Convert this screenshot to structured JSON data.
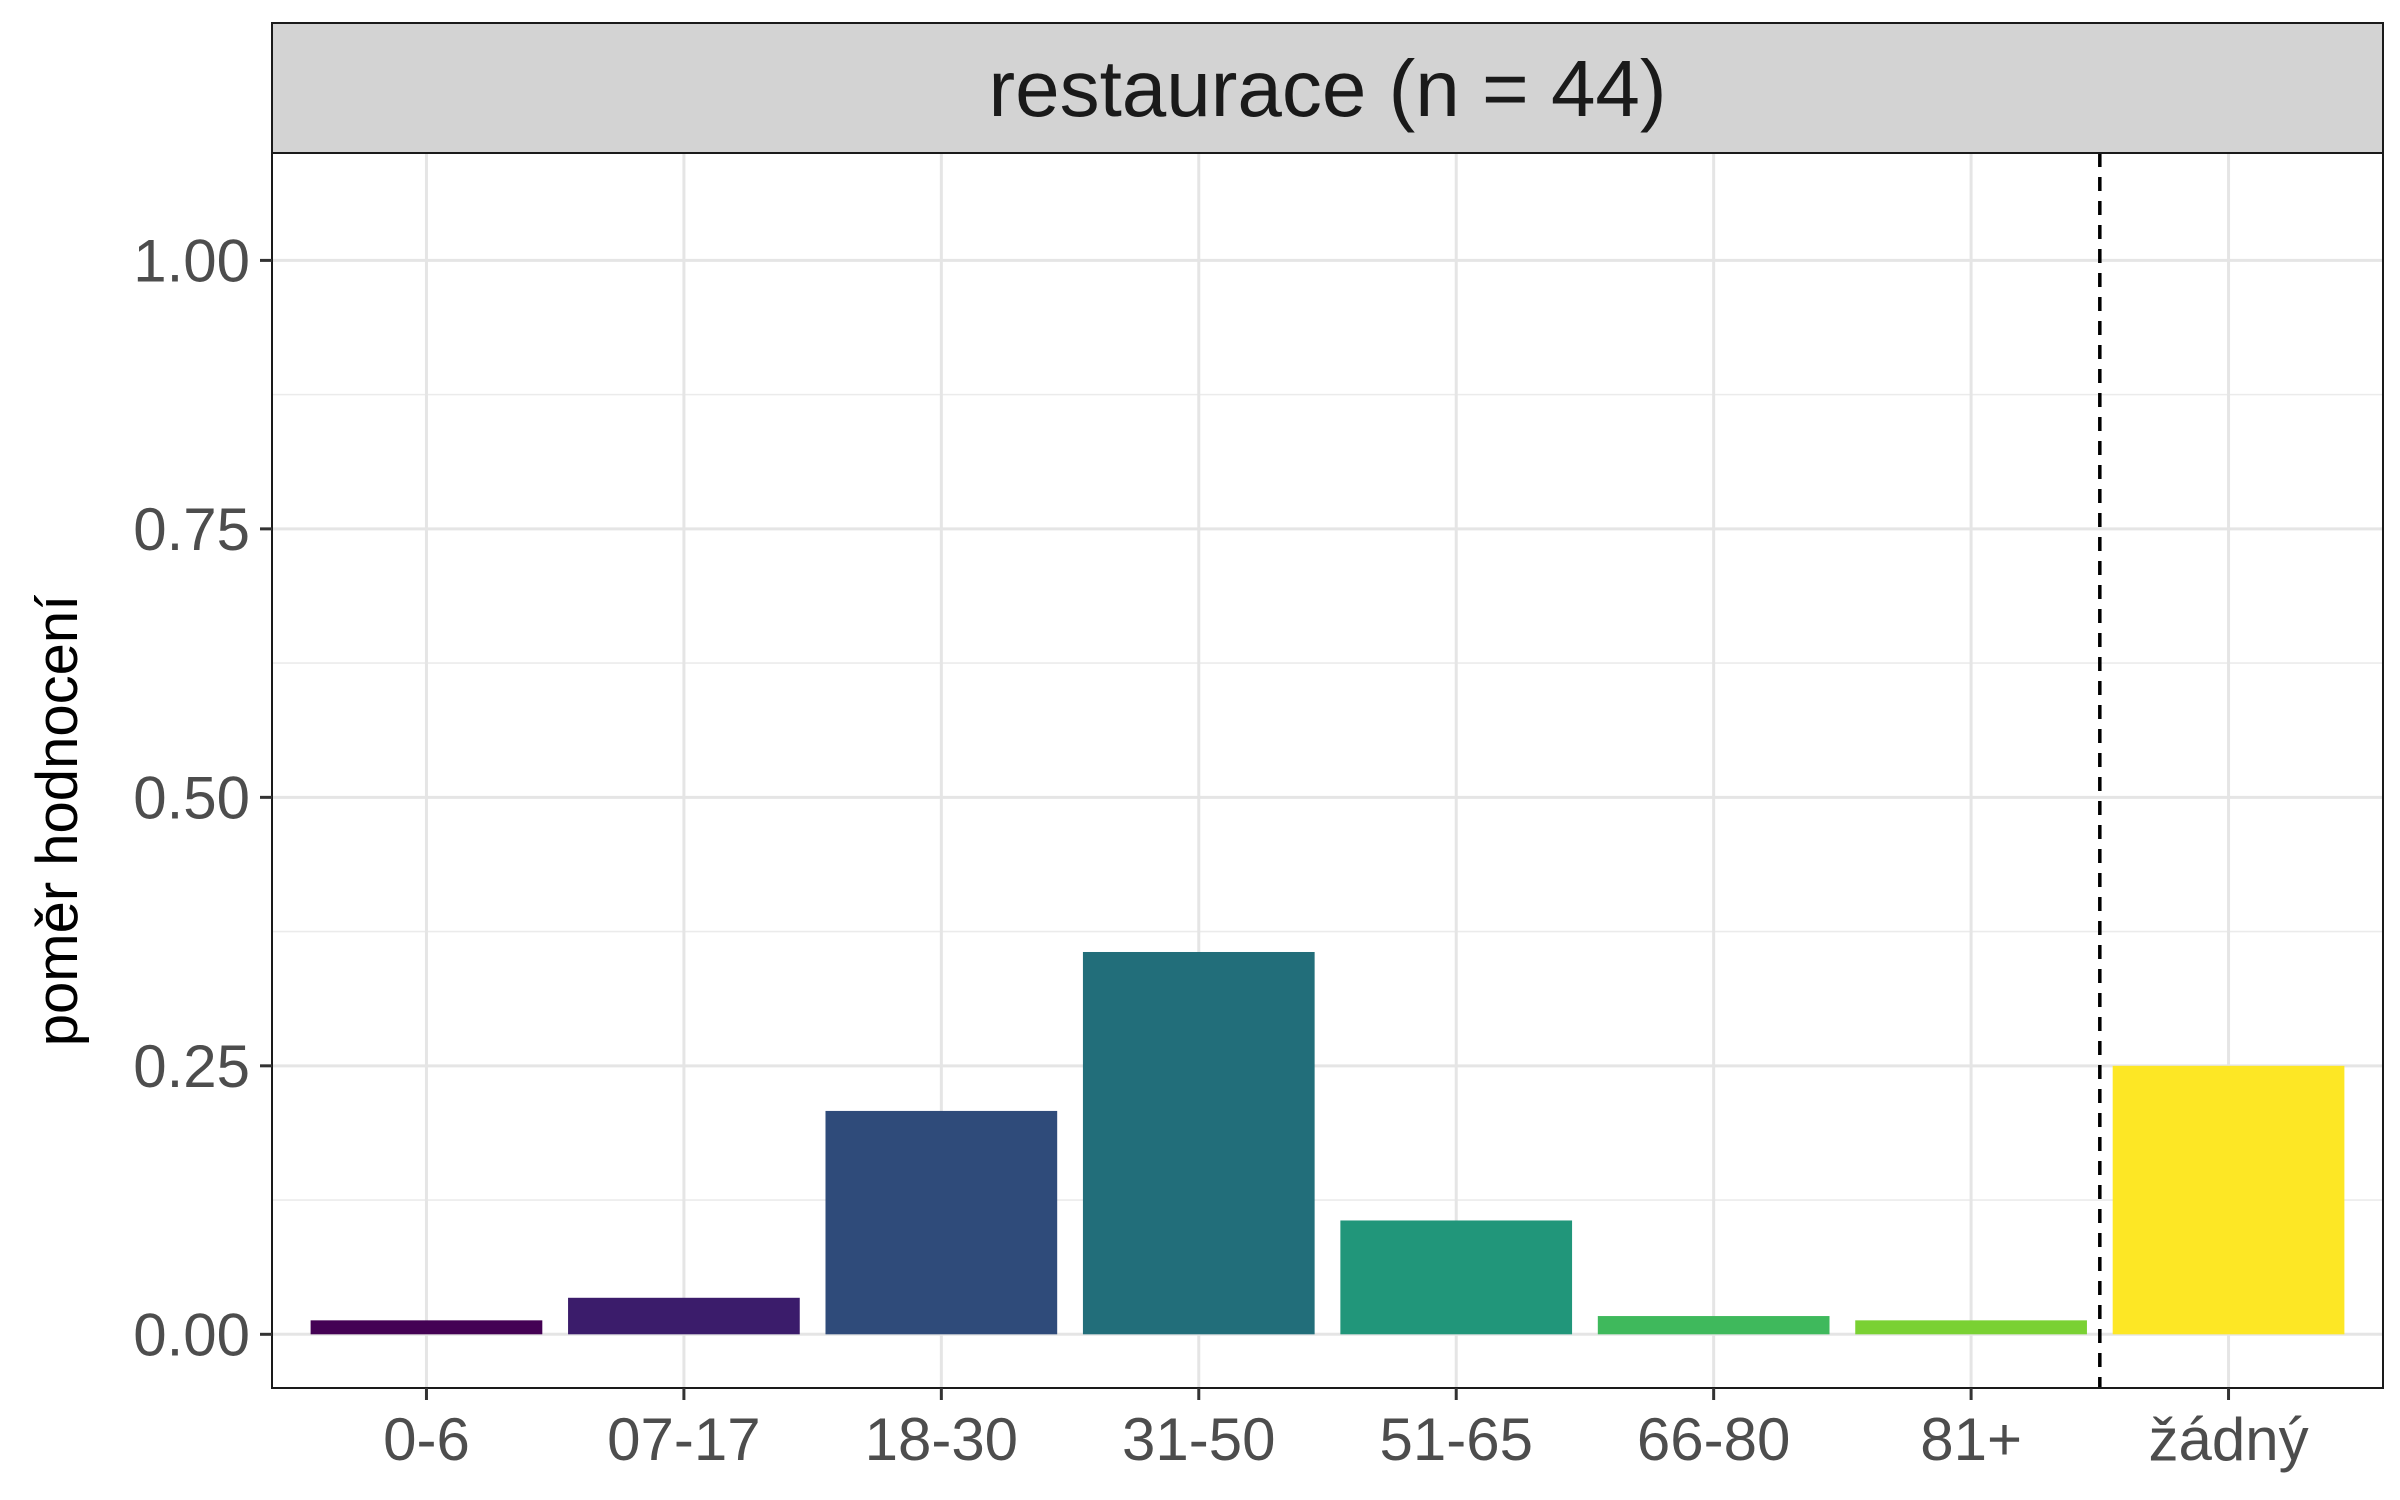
{
  "chart_data": {
    "type": "bar",
    "facet_title": "restaurace (n = 44)",
    "ylabel": "poměr hodnocení",
    "xlabel": "",
    "categories": [
      "0-6",
      "07-17",
      "18-30",
      "31-50",
      "51-65",
      "66-80",
      "81+",
      "žádný"
    ],
    "values": [
      0.013,
      0.034,
      0.208,
      0.356,
      0.106,
      0.017,
      0.013,
      0.25
    ],
    "colors": [
      "#440154",
      "#3B1C6B",
      "#2F4B7A",
      "#226E7A",
      "#21967A",
      "#3FB95C",
      "#7AD133",
      "#FDE725"
    ],
    "ylim": [
      -0.05,
      1.1
    ],
    "y_ticks": [
      0.0,
      0.25,
      0.5,
      0.75,
      1.0
    ],
    "y_tick_labels": [
      "0.00",
      "0.25",
      "0.50",
      "0.75",
      "1.00"
    ],
    "grid": true,
    "reference_line": {
      "style": "dashed",
      "between": [
        "81+",
        "žádný"
      ]
    }
  }
}
